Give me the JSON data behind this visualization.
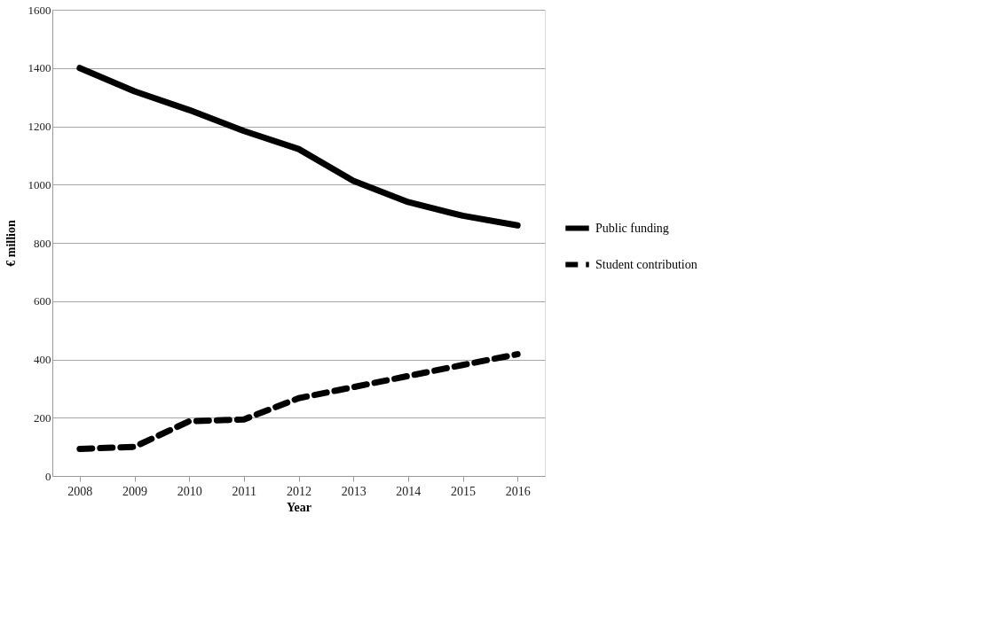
{
  "chart_data": {
    "type": "line",
    "xlabel": "Year",
    "ylabel": "€ million",
    "categories": [
      "2008",
      "2009",
      "2010",
      "2011",
      "2012",
      "2013",
      "2014",
      "2015",
      "2016"
    ],
    "series": [
      {
        "name": "Public funding",
        "color": "#000000",
        "line_style": "solid",
        "values": [
          1400,
          1320,
          1256,
          1184,
          1122,
          1013,
          940,
          893,
          860
        ]
      },
      {
        "name": "Student contribution",
        "color": "#000000",
        "line_style": "dashed",
        "values": [
          93,
          100,
          188,
          194,
          267,
          305,
          343,
          381,
          418
        ]
      }
    ],
    "ylim": [
      0,
      1600
    ],
    "yticks": [
      0,
      200,
      400,
      600,
      800,
      1000,
      1200,
      1400,
      1600
    ],
    "grid": "y",
    "legend": "right",
    "marker": "none"
  }
}
